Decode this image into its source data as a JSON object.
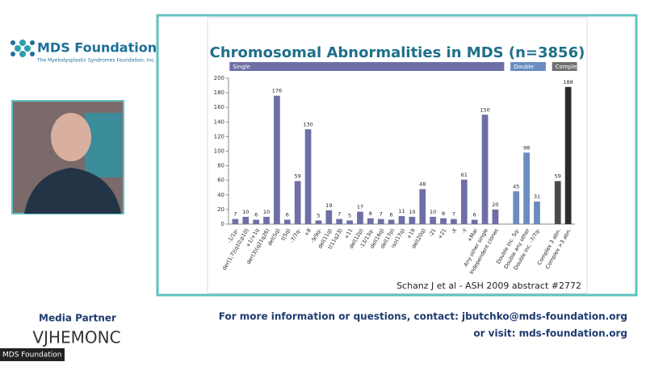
{
  "header": {
    "logo_title": "MDS Foundation",
    "logo_subtitle": "The Myelodysplastic Syndromes Foundation, Inc."
  },
  "sidebar": {
    "media_partner": "Media Partner",
    "partner_logo": "VJHEMONC"
  },
  "video": {
    "label": "MDS Foundation"
  },
  "slide": {
    "citation": "Schanz J et al - ASH 2009 abstract #2772"
  },
  "footer": {
    "contact": "For more information or questions, contact: jbutchko@mds-foundation.org",
    "visit": "or visit: mds-foundation.org"
  },
  "chart_data": {
    "type": "bar",
    "title": "Chromosomal Abnormalities in MDS (n=3856)",
    "ylim": [
      0,
      200
    ],
    "yticks": [
      0,
      20,
      40,
      60,
      80,
      100,
      120,
      140,
      160,
      180,
      200
    ],
    "series": [
      {
        "name": "Single",
        "color": "#6e6fa6",
        "categories": [
          "-1/1p-",
          "der(1;7)(q10;p10)",
          "+1/+1q",
          "der(3)(q21q26)",
          "del(5q)",
          "t(5q)",
          "-7/7q-",
          "+8",
          "-9/9q-",
          "del(11q)",
          "t(11q23)",
          "+11",
          "del(12p)",
          "-13/13q-",
          "del(16q)",
          "del(17p)",
          "iso(17q)",
          "+19",
          "del(20q)",
          "-21",
          "+21",
          "-X",
          "-Y",
          "+Mar",
          "Any other single",
          "Independent clones"
        ],
        "values": [
          7,
          10,
          6,
          10,
          176,
          6,
          59,
          130,
          5,
          19,
          7,
          5,
          17,
          8,
          7,
          6,
          11,
          10,
          48,
          10,
          8,
          7,
          61,
          6,
          150,
          20
        ]
      },
      {
        "name": "Double",
        "color": "#6a8cc0",
        "categories": [
          "Double inc. 5q-",
          "Double any other",
          "Double inc. -7/7q-"
        ],
        "values": [
          45,
          98,
          31
        ]
      },
      {
        "name": "Complex",
        "color": "#707070",
        "colors": [
          "#4a4a4a",
          "#2b2b2b"
        ],
        "categories": [
          "Complex 3 abn.",
          "Complex >3 abn."
        ],
        "values": [
          59,
          188
        ]
      }
    ]
  }
}
